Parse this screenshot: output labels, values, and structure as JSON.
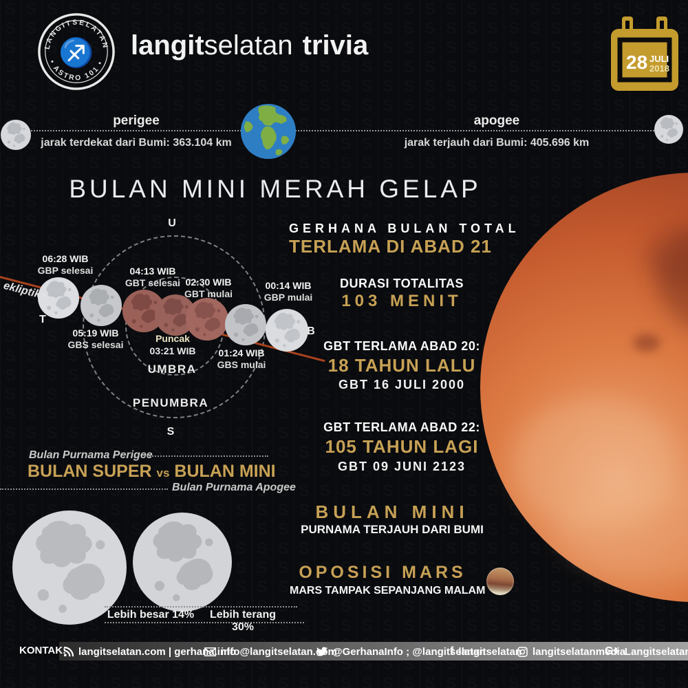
{
  "header": {
    "logo": {
      "ring_top": "LANGITSELATAN",
      "ring_bottom": "• ASTRO 101 •",
      "glyph": "♐"
    },
    "brand": {
      "bold": "langit",
      "regular": "selatan",
      "suffix": "trivia"
    },
    "calendar": {
      "day": "28",
      "month": "JULI",
      "year": "2018"
    }
  },
  "orbit": {
    "perigee": {
      "label": "perigee",
      "detail": "jarak terdekat dari Bumi: 363.104 km"
    },
    "apogee": {
      "label": "apogee",
      "detail": "jarak terjauh dari Bumi: 405.696 km"
    }
  },
  "headline": {
    "title": "BULAN MINI MERAH GELAP",
    "sub1": "GERHANA BULAN TOTAL",
    "sub2": "TERLAMA DI ABAD 21"
  },
  "diagram": {
    "compass": {
      "u": "U",
      "s": "S",
      "t": "T",
      "b": "B"
    },
    "zones": {
      "umbra": "UMBRA",
      "penumbra": "PENUMBRA"
    },
    "ecliptic": "ekliptika",
    "events": [
      {
        "time": "06:28 WIB",
        "label": "GBP selesai"
      },
      {
        "time": "04:13 WIB",
        "label": "GBT selesai"
      },
      {
        "time": "02:30 WIB",
        "label": "GBT mulai"
      },
      {
        "time": "00:14 WIB",
        "label": "GBP mulai"
      },
      {
        "time": "05:19 WIB",
        "label": "GBS selesai"
      },
      {
        "time": "01:24 WIB",
        "label": "GBS mulai"
      }
    ],
    "peak": {
      "label": "Puncak",
      "time": "03:21 WIB"
    }
  },
  "stats": [
    {
      "heading": "DURASI TOTALITAS",
      "value": "103 MENIT"
    },
    {
      "heading": "GBT TERLAMA ABAD 20:",
      "value": "18 TAHUN LALU",
      "detail": "GBT 16 JULI 2000"
    },
    {
      "heading": "GBT TERLAMA ABAD 22:",
      "value": "105 TAHUN LAGI",
      "detail": "GBT 09 JUNI 2123"
    }
  ],
  "versus": {
    "caption_top": "Bulan Purnama Perigee",
    "title_left": "BULAN SUPER",
    "vs": "vs",
    "title_right": "BULAN MINI",
    "caption_bottom": "Bulan Purnama Apogee",
    "bigger": "Lebih besar 14%",
    "brighter": "Lebih terang 30%"
  },
  "facts": [
    {
      "title": "BULAN MINI",
      "subtitle": "PURNAMA TERJAUH DARI BUMI"
    },
    {
      "title": "OPOSISI MARS",
      "subtitle": "MARS TAMPAK SEPANJANG MALAM"
    }
  ],
  "footer": {
    "label": "KONTAK:",
    "items": [
      {
        "icon": "rss-icon",
        "text": "langitselatan.com | gerhana.info"
      },
      {
        "icon": "mail-icon",
        "text": "info@langitselatan.com"
      },
      {
        "icon": "twitter-icon",
        "text": "@GerhanaInfo ; @langitselatan"
      },
      {
        "icon": "facebook-icon",
        "icon_glyph": "f",
        "text": "langitselatan"
      },
      {
        "icon": "instagram-icon",
        "text": "langitselatanmedia"
      },
      {
        "icon": "gplus-icon",
        "icon_glyph": "G+",
        "text": "LangitselatanMedia"
      }
    ]
  },
  "watermark": {
    "glyph": "S"
  },
  "colors": {
    "gold": "#c7a155",
    "calendar_gold": "#c49c2e",
    "ecliptic_red": "#a8431e",
    "footer_bar_start": "#2c2c2c",
    "footer_bar_end": "#a2a2a2"
  }
}
